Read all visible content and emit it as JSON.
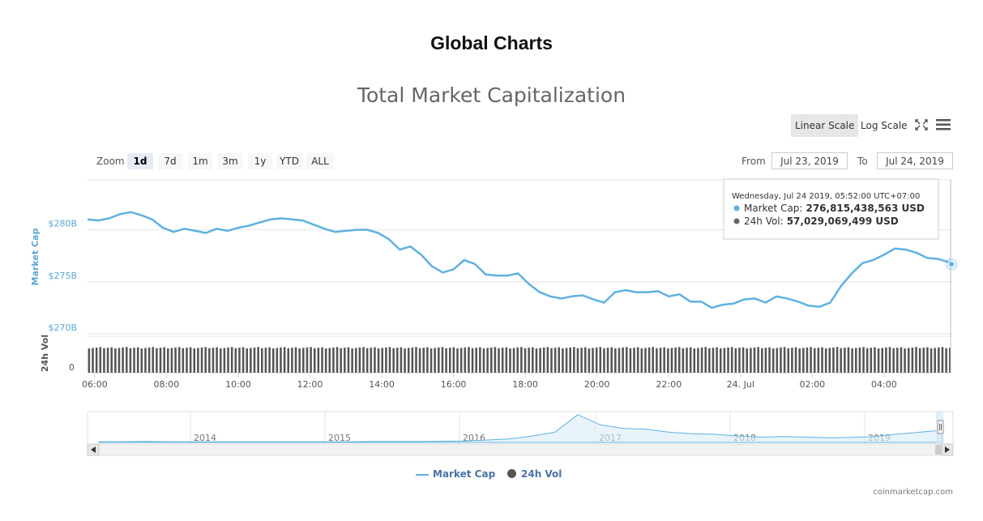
{
  "header": {
    "title": "Global Charts"
  },
  "chart_data": {
    "type": "line",
    "title": "Total Market Capitalization",
    "ylabel": "Market Cap",
    "ylabel2": "24h Vol",
    "yticks": [
      "$280B",
      "$275B",
      "$270B"
    ],
    "yticks_values": [
      280,
      275,
      270
    ],
    "ylim": [
      270,
      284.8
    ],
    "vol_ytick": "0",
    "xticks": [
      "06:00",
      "08:00",
      "10:00",
      "12:00",
      "14:00",
      "16:00",
      "18:00",
      "20:00",
      "22:00",
      "24. Jul",
      "02:00",
      "04:00"
    ],
    "x_hours": [
      0,
      24.1
    ],
    "market_cap_billions": [
      [
        0.0,
        281.0
      ],
      [
        0.3,
        280.9
      ],
      [
        0.6,
        281.1
      ],
      [
        0.9,
        281.5
      ],
      [
        1.2,
        281.7
      ],
      [
        1.5,
        281.4
      ],
      [
        1.8,
        281.0
      ],
      [
        2.1,
        280.2
      ],
      [
        2.4,
        279.8
      ],
      [
        2.7,
        280.1
      ],
      [
        3.0,
        279.9
      ],
      [
        3.3,
        279.7
      ],
      [
        3.6,
        280.1
      ],
      [
        3.9,
        279.9
      ],
      [
        4.2,
        280.2
      ],
      [
        4.5,
        280.4
      ],
      [
        4.8,
        280.7
      ],
      [
        5.1,
        281.0
      ],
      [
        5.4,
        281.1
      ],
      [
        5.7,
        281.0
      ],
      [
        6.0,
        280.9
      ],
      [
        6.3,
        280.5
      ],
      [
        6.6,
        280.1
      ],
      [
        6.9,
        279.8
      ],
      [
        7.2,
        279.9
      ],
      [
        7.5,
        280.0
      ],
      [
        7.8,
        280.0
      ],
      [
        8.1,
        279.7
      ],
      [
        8.4,
        279.1
      ],
      [
        8.7,
        278.1
      ],
      [
        9.0,
        278.4
      ],
      [
        9.3,
        277.6
      ],
      [
        9.6,
        276.5
      ],
      [
        9.9,
        275.9
      ],
      [
        10.2,
        276.2
      ],
      [
        10.5,
        277.1
      ],
      [
        10.8,
        276.7
      ],
      [
        11.1,
        275.7
      ],
      [
        11.4,
        275.6
      ],
      [
        11.7,
        275.6
      ],
      [
        12.0,
        275.8
      ],
      [
        12.3,
        274.8
      ],
      [
        12.6,
        274.0
      ],
      [
        12.9,
        273.6
      ],
      [
        13.2,
        273.4
      ],
      [
        13.5,
        273.6
      ],
      [
        13.8,
        273.7
      ],
      [
        14.1,
        273.3
      ],
      [
        14.4,
        273.0
      ],
      [
        14.7,
        274.0
      ],
      [
        15.0,
        274.2
      ],
      [
        15.3,
        274.0
      ],
      [
        15.6,
        274.0
      ],
      [
        15.9,
        274.1
      ],
      [
        16.2,
        273.6
      ],
      [
        16.5,
        273.8
      ],
      [
        16.8,
        273.1
      ],
      [
        17.1,
        273.1
      ],
      [
        17.4,
        272.5
      ],
      [
        17.7,
        272.8
      ],
      [
        18.0,
        272.9
      ],
      [
        18.3,
        273.3
      ],
      [
        18.6,
        273.4
      ],
      [
        18.9,
        273.0
      ],
      [
        19.2,
        273.6
      ],
      [
        19.5,
        273.4
      ],
      [
        19.8,
        273.1
      ],
      [
        20.1,
        272.7
      ],
      [
        20.4,
        272.6
      ],
      [
        20.7,
        273.0
      ],
      [
        21.0,
        274.6
      ],
      [
        21.3,
        275.8
      ],
      [
        21.6,
        276.8
      ],
      [
        21.9,
        277.1
      ],
      [
        22.2,
        277.6
      ],
      [
        22.5,
        278.2
      ],
      [
        22.8,
        278.1
      ],
      [
        23.1,
        277.8
      ],
      [
        23.4,
        277.3
      ],
      [
        23.7,
        277.2
      ],
      [
        24.1,
        276.8
      ]
    ],
    "volume_billions_approx": 57.0,
    "volume_bar_count": 230,
    "tooltip": {
      "title": "Wednesday, Jul 24 2019, 05:52:00 UTC+07:00",
      "market_cap_label": "Market Cap:",
      "market_cap_value": "276,815,438,563 USD",
      "vol_label": "24h Vol:",
      "vol_value": "57,029,069,499 USD"
    },
    "navigator": {
      "years": [
        "2014",
        "2015",
        "2016",
        "2017",
        "2018",
        "2019"
      ],
      "series_rel": [
        0.02,
        0.02,
        0.03,
        0.02,
        0.02,
        0.02,
        0.02,
        0.02,
        0.02,
        0.02,
        0.02,
        0.02,
        0.03,
        0.03,
        0.03,
        0.04,
        0.05,
        0.08,
        0.12,
        0.22,
        0.35,
        0.95,
        0.6,
        0.48,
        0.45,
        0.35,
        0.3,
        0.28,
        0.22,
        0.18,
        0.2,
        0.18,
        0.16,
        0.17,
        0.2,
        0.28,
        0.35,
        0.42
      ]
    },
    "legend": [
      {
        "name": "Market Cap",
        "symbol": "line"
      },
      {
        "name": "24h Vol",
        "symbol": "circle"
      }
    ],
    "colors": {
      "market_cap": "#5fb1e0",
      "volume": "#555555",
      "axis_label": "#5aa7d6"
    }
  },
  "controls": {
    "linear_scale": "Linear Scale",
    "log_scale": "Log Scale",
    "zoom_label": "Zoom",
    "zoom_options": [
      "1d",
      "7d",
      "1m",
      "3m",
      "1y",
      "YTD",
      "ALL"
    ],
    "from_label": "From",
    "from_value": "Jul 23, 2019",
    "to_label": "To",
    "to_value": "Jul 24, 2019"
  },
  "footer": {
    "credit": "coinmarketcap.com"
  }
}
